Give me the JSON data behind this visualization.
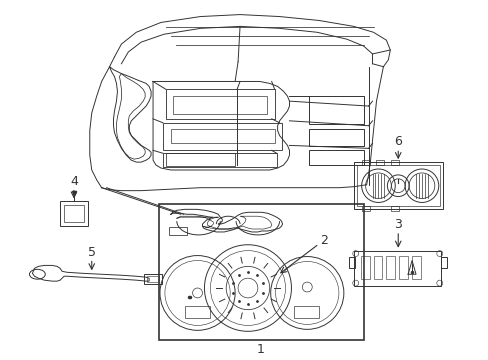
{
  "background_color": "#ffffff",
  "line_color": "#333333",
  "label_color": "#000000",
  "fig_width": 4.89,
  "fig_height": 3.6,
  "dpi": 100,
  "label_fontsize": 9,
  "lw": 0.7
}
